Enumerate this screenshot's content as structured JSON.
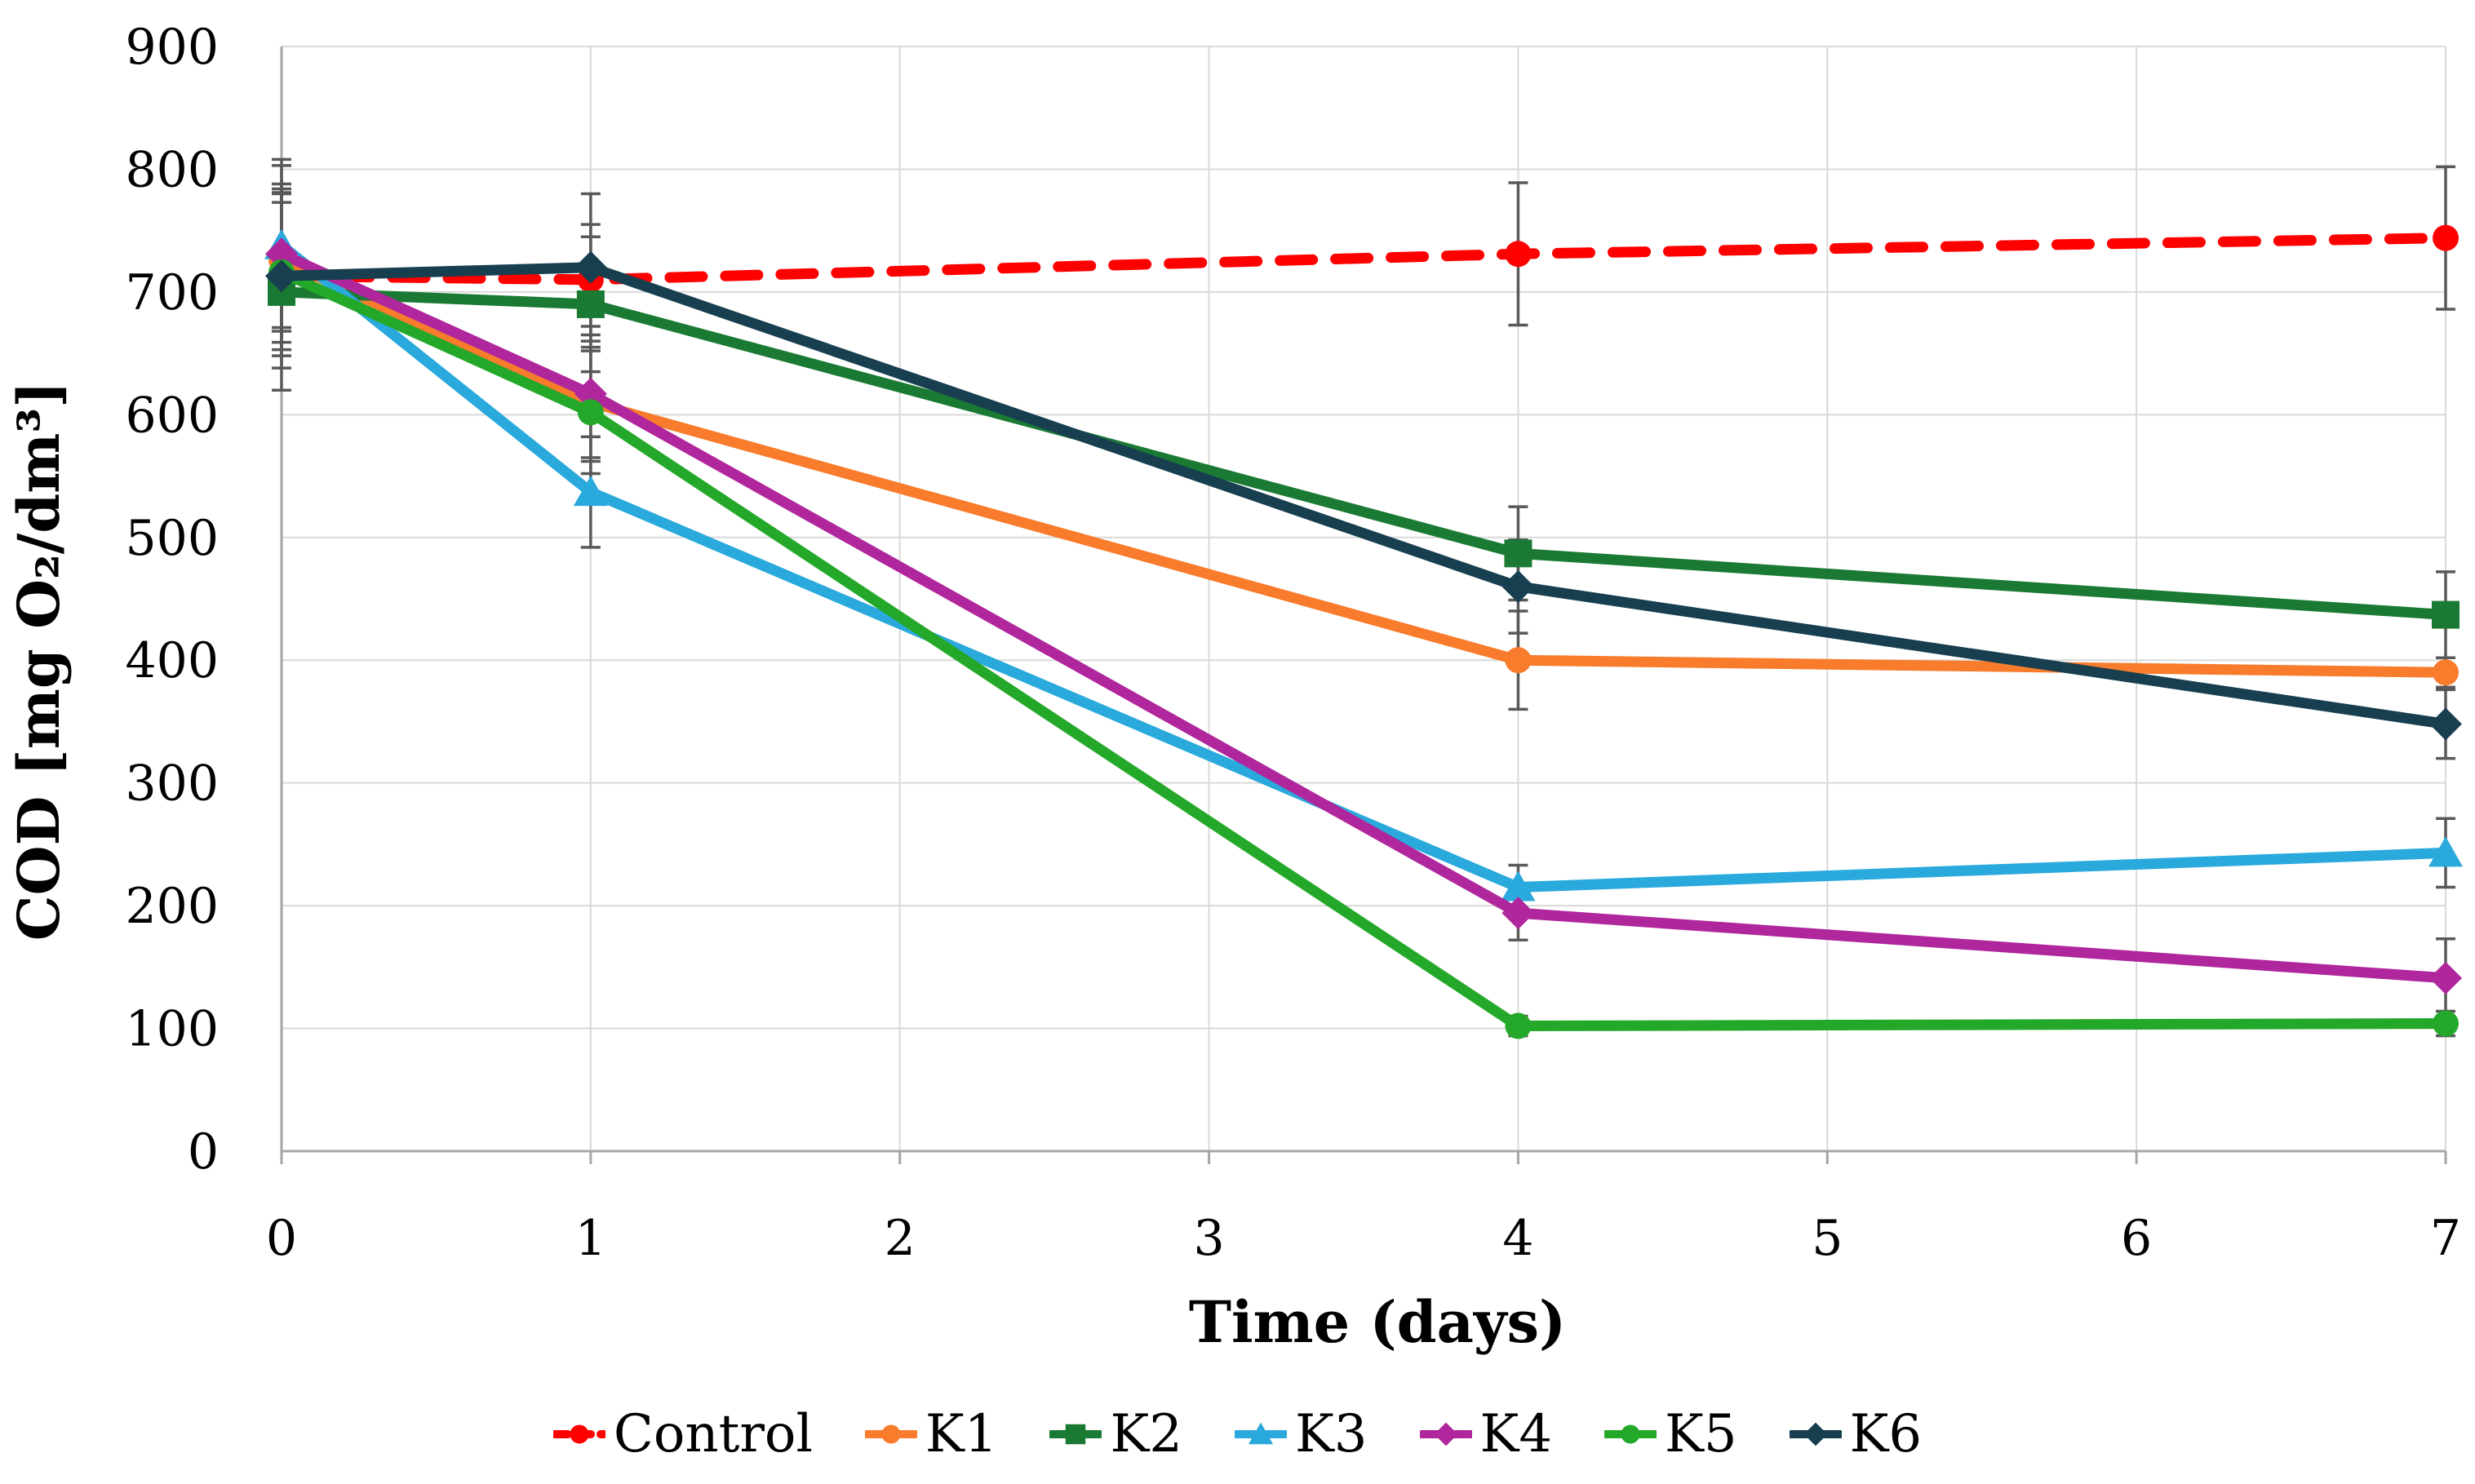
{
  "chart_data": {
    "type": "line",
    "title": "",
    "xlabel": "Time (days)",
    "ylabel": "COD [mg O₂/dm³]",
    "x": [
      0,
      1,
      4,
      7
    ],
    "xlim": [
      0,
      7
    ],
    "ylim": [
      0,
      900
    ],
    "xticks": [
      0,
      1,
      2,
      3,
      4,
      5,
      6,
      7
    ],
    "yticks": [
      0,
      100,
      200,
      300,
      400,
      500,
      600,
      700,
      800,
      900
    ],
    "grid": "both",
    "legend_position": "bottom",
    "series": [
      {
        "name": "Control",
        "color": "#FE0000",
        "dashed": true,
        "marker": "circle",
        "values": [
          713,
          710,
          731,
          744
        ],
        "errors": [
          60,
          45,
          58,
          58
        ]
      },
      {
        "name": "K1",
        "color": "#F87C2C",
        "dashed": false,
        "marker": "circle",
        "values": [
          726,
          610,
          400,
          390
        ],
        "errors": [
          55,
          45,
          40,
          12
        ]
      },
      {
        "name": "K2",
        "color": "#1A7A33",
        "dashed": false,
        "marker": "square",
        "values": [
          700,
          690,
          487,
          437
        ],
        "errors": [
          80,
          55,
          38,
          35
        ]
      },
      {
        "name": "K3",
        "color": "#29A9DC",
        "dashed": false,
        "marker": "triangle",
        "values": [
          738,
          537,
          215,
          243
        ],
        "errors": [
          70,
          45,
          18,
          28
        ]
      },
      {
        "name": "K4",
        "color": "#B0269C",
        "dashed": false,
        "marker": "diamond",
        "values": [
          731,
          617,
          194,
          141
        ],
        "errors": [
          72,
          55,
          22,
          32
        ]
      },
      {
        "name": "K5",
        "color": "#24A829",
        "dashed": false,
        "marker": "circle",
        "values": [
          716,
          602,
          102,
          104
        ],
        "errors": [
          68,
          50,
          8,
          10
        ]
      },
      {
        "name": "K6",
        "color": "#173F50",
        "dashed": false,
        "marker": "diamond",
        "values": [
          713,
          720,
          460,
          348
        ],
        "errors": [
          75,
          60,
          38,
          28
        ]
      }
    ],
    "style": {
      "grid_color": "#D9D9D9",
      "axis_color": "#A6A6A6",
      "error_bar_color": "#595959",
      "text_color": "#000000",
      "background": "#FFFFFF"
    }
  }
}
